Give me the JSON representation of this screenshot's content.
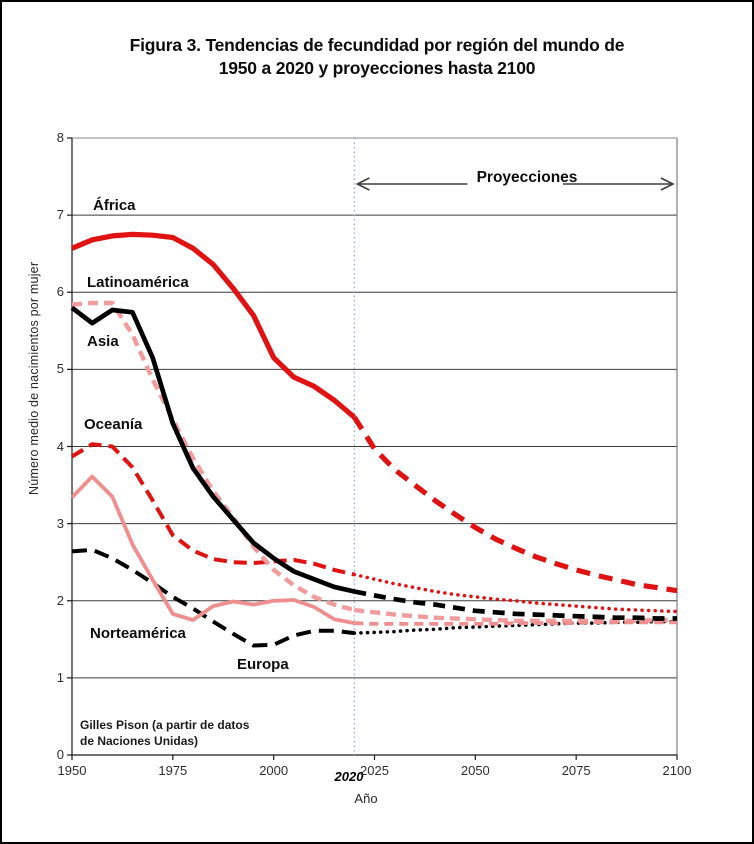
{
  "figure": {
    "title_line1": "Figura 3. Tendencias de fecundidad por región del mundo de",
    "title_line2": "1950 a 2020 y proyecciones hasta 2100",
    "credit_line1": "Gilles Pison (a partir de datos",
    "credit_line2": "de Naciones Unidas)"
  },
  "chart_data": {
    "type": "line",
    "title": "Figura 3. Tendencias de fecundidad por región del mundo de 1950 a 2020 y proyecciones hasta 2100",
    "xlabel": "Año",
    "ylabel": "Número medio de nacimientos por mujer",
    "xlim": [
      1950,
      2100
    ],
    "ylim": [
      0,
      8
    ],
    "x_ticks": [
      "1950",
      "1975",
      "2000",
      "2025",
      "2050",
      "2075",
      "2100"
    ],
    "x_tick_years": [
      1950,
      1975,
      2000,
      2025,
      2050,
      2075,
      2100
    ],
    "y_ticks": [
      "0",
      "1",
      "2",
      "3",
      "4",
      "5",
      "6",
      "7",
      "8"
    ],
    "grid": "horizontal",
    "legend_position": "labels-on-chart",
    "projection_divider_year": 2020,
    "divider_tick_label": "2020",
    "projection_label": "Proyecciones",
    "divider_color": "#8ea9cf",
    "historical_years": [
      1950,
      1955,
      1960,
      1965,
      1970,
      1975,
      1980,
      1985,
      1990,
      1995,
      2000,
      2005,
      2010,
      2015,
      2020
    ],
    "projection_years": [
      2020,
      2025,
      2030,
      2035,
      2040,
      2045,
      2050,
      2055,
      2060,
      2065,
      2070,
      2075,
      2080,
      2085,
      2090,
      2095,
      2100
    ],
    "series": [
      {
        "name": "África",
        "color": "#e01212",
        "line": "solid",
        "projection_line": "dashed",
        "width": 5.2,
        "historical": [
          6.57,
          6.68,
          6.73,
          6.75,
          6.74,
          6.71,
          6.57,
          6.36,
          6.05,
          5.7,
          5.15,
          4.9,
          4.78,
          4.6,
          4.38
        ],
        "projection": [
          4.38,
          3.97,
          3.7,
          3.5,
          3.3,
          3.12,
          2.95,
          2.8,
          2.68,
          2.57,
          2.48,
          2.4,
          2.33,
          2.27,
          2.21,
          2.17,
          2.13
        ]
      },
      {
        "name": "Latinoamérica",
        "color": "#f19c9c",
        "line": "dashed",
        "projection_line": "dashed",
        "width": 4.4,
        "historical": [
          5.84,
          5.86,
          5.86,
          5.45,
          4.87,
          4.35,
          3.85,
          3.42,
          3.08,
          2.7,
          2.4,
          2.2,
          2.05,
          1.95,
          1.88
        ],
        "projection": [
          1.88,
          1.85,
          1.82,
          1.8,
          1.78,
          1.77,
          1.76,
          1.75,
          1.74,
          1.74,
          1.74,
          1.74,
          1.74,
          1.74,
          1.74,
          1.75,
          1.75
        ]
      },
      {
        "name": "Asia",
        "color": "#000000",
        "line": "solid",
        "projection_line": "dashed",
        "width": 4.7,
        "historical": [
          5.8,
          5.6,
          5.77,
          5.74,
          5.15,
          4.3,
          3.72,
          3.35,
          3.05,
          2.75,
          2.55,
          2.38,
          2.28,
          2.18,
          2.12
        ],
        "projection": [
          2.12,
          2.07,
          2.02,
          1.98,
          1.95,
          1.91,
          1.87,
          1.85,
          1.83,
          1.82,
          1.81,
          1.8,
          1.79,
          1.78,
          1.78,
          1.77,
          1.77
        ]
      },
      {
        "name": "Oceanía",
        "color": "#e01212",
        "line": "dashed",
        "projection_line": "dotted",
        "width": 4.0,
        "historical": [
          3.87,
          4.03,
          4.0,
          3.73,
          3.3,
          2.85,
          2.65,
          2.54,
          2.5,
          2.49,
          2.51,
          2.53,
          2.48,
          2.4,
          2.34
        ],
        "projection": [
          2.34,
          2.28,
          2.22,
          2.17,
          2.12,
          2.08,
          2.05,
          2.02,
          2.0,
          1.97,
          1.95,
          1.93,
          1.91,
          1.89,
          1.88,
          1.87,
          1.86
        ]
      },
      {
        "name": "Norteamérica",
        "color": "#ef8e8e",
        "line": "solid",
        "projection_line": "dashed",
        "width": 3.8,
        "historical": [
          3.34,
          3.61,
          3.35,
          2.73,
          2.27,
          1.83,
          1.75,
          1.93,
          1.99,
          1.95,
          2.0,
          2.01,
          1.92,
          1.76,
          1.71
        ],
        "projection": [
          1.71,
          1.7,
          1.7,
          1.7,
          1.7,
          1.7,
          1.7,
          1.7,
          1.71,
          1.71,
          1.71,
          1.71,
          1.72,
          1.72,
          1.72,
          1.72,
          1.72
        ]
      },
      {
        "name": "Europa",
        "color": "#000000",
        "line": "dashed",
        "projection_line": "dotted",
        "width": 4.0,
        "historical": [
          2.64,
          2.66,
          2.55,
          2.4,
          2.23,
          2.05,
          1.9,
          1.73,
          1.57,
          1.42,
          1.43,
          1.55,
          1.61,
          1.61,
          1.58
        ],
        "projection": [
          1.58,
          1.59,
          1.6,
          1.62,
          1.63,
          1.65,
          1.66,
          1.67,
          1.68,
          1.69,
          1.7,
          1.71,
          1.71,
          1.72,
          1.72,
          1.73,
          1.73
        ]
      }
    ]
  }
}
